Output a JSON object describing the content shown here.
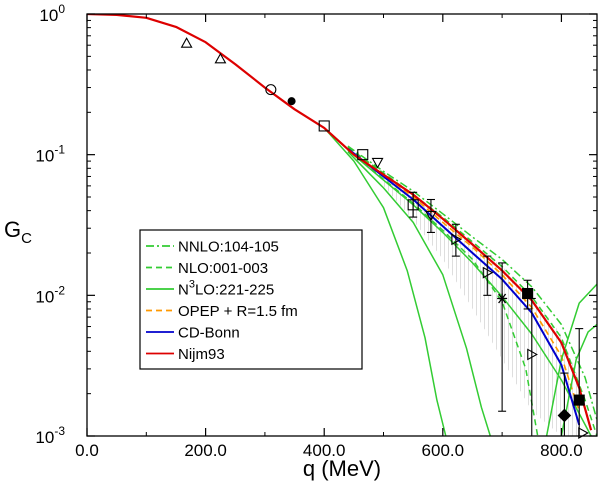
{
  "chart_data": {
    "type": "line",
    "xlabel": "q (MeV)",
    "ylabel_main": "G",
    "ylabel_sub": "C",
    "xlim": [
      0,
      860
    ],
    "ylim": [
      0.001,
      1
    ],
    "yscale": "log",
    "x_ticks": [
      {
        "value": 0,
        "label": "0.0"
      },
      {
        "value": 200,
        "label": "200.0"
      },
      {
        "value": 400,
        "label": "400.0"
      },
      {
        "value": 600,
        "label": "600.0"
      },
      {
        "value": 800,
        "label": "800.0"
      }
    ],
    "y_ticks": [
      {
        "value": 1,
        "base": "10",
        "exp": "0"
      },
      {
        "value": 0.1,
        "base": "10",
        "exp": "-1"
      },
      {
        "value": 0.01,
        "base": "10",
        "exp": "-2"
      },
      {
        "value": 0.001,
        "base": "10",
        "exp": "-3"
      }
    ],
    "legend_position": "lower-left",
    "legend": [
      {
        "text": "NNLO:104-105",
        "color": "#33cc33",
        "dash": "8 3 2 3"
      },
      {
        "text": "NLO:001-003",
        "color": "#33cc33",
        "dash": "6 4"
      },
      {
        "text_pre": "N",
        "text_sup": "3",
        "text_post": "LO:221-225",
        "color": "#33cc33",
        "dash": ""
      },
      {
        "text": "OPEP + R=1.5 fm",
        "color": "#ff9900",
        "dash": "6 4"
      },
      {
        "text": "CD-Bonn",
        "color": "#0000cc",
        "dash": ""
      },
      {
        "text": "Nijm93",
        "color": "#dd0000",
        "dash": ""
      }
    ],
    "series": [
      {
        "name": "Nijm93",
        "color": "#dd0000",
        "width": 2.2,
        "dash": "",
        "x": [
          0,
          50,
          100,
          150,
          200,
          250,
          300,
          350,
          400,
          450,
          500,
          550,
          600,
          650,
          700,
          750,
          800,
          830,
          850
        ],
        "y": [
          1.0,
          0.985,
          0.94,
          0.81,
          0.63,
          0.44,
          0.3,
          0.21,
          0.155,
          0.1,
          0.072,
          0.052,
          0.035,
          0.023,
          0.015,
          0.0092,
          0.0046,
          0.0022,
          0.0011
        ]
      },
      {
        "name": "CD-Bonn",
        "color": "#0000cc",
        "width": 2.0,
        "dash": "",
        "x": [
          440,
          500,
          550,
          600,
          650,
          700,
          750,
          800,
          830
        ],
        "y": [
          0.11,
          0.07,
          0.048,
          0.031,
          0.02,
          0.013,
          0.0075,
          0.0032,
          0.0012
        ]
      },
      {
        "name": "OPEP + R=1.5 fm",
        "color": "#ff9900",
        "width": 1.6,
        "dash": "6 4",
        "x": [
          440,
          500,
          550,
          600,
          650,
          700,
          750,
          800,
          830
        ],
        "y": [
          0.112,
          0.072,
          0.05,
          0.033,
          0.022,
          0.014,
          0.0082,
          0.0037,
          0.0015
        ]
      },
      {
        "name": "NNLO:104-105",
        "color": "#33cc33",
        "width": 1.5,
        "dash": "8 3 2 3",
        "x": [
          440,
          500,
          550,
          600,
          650,
          700,
          750,
          800,
          840,
          860
        ],
        "y": [
          0.115,
          0.076,
          0.055,
          0.038,
          0.026,
          0.018,
          0.0115,
          0.0062,
          0.0026,
          0.0013
        ]
      },
      {
        "name": "NLO:001-003",
        "color": "#33cc33",
        "width": 1.5,
        "dash": "6 4",
        "x": [
          440,
          500,
          550,
          600,
          650,
          700,
          750,
          800,
          840,
          860
        ],
        "y": [
          0.113,
          0.074,
          0.052,
          0.036,
          0.024,
          0.016,
          0.0098,
          0.005,
          0.0018,
          0.001
        ]
      },
      {
        "name": "",
        "color": "#33cc33",
        "width": 1.5,
        "dash": "6 4",
        "x": [
          440,
          500,
          550,
          600,
          650,
          700,
          740,
          760
        ],
        "y": [
          0.108,
          0.067,
          0.045,
          0.029,
          0.018,
          0.009,
          0.003,
          0.001
        ]
      },
      {
        "name": "N3LO:221-225",
        "color": "#33cc33",
        "width": 1.5,
        "dash": "",
        "x": [
          440,
          500,
          550,
          600,
          650,
          700,
          750,
          800,
          850
        ],
        "y": [
          0.108,
          0.066,
          0.044,
          0.028,
          0.017,
          0.0098,
          0.0053,
          0.0025,
          0.001
        ]
      },
      {
        "name": "",
        "color": "#33cc33",
        "width": 1.5,
        "dash": "",
        "x": [
          440,
          500,
          550,
          600,
          640,
          665,
          680
        ],
        "y": [
          0.105,
          0.058,
          0.033,
          0.014,
          0.0042,
          0.0016,
          0.001
        ]
      },
      {
        "name": "",
        "color": "#33cc33",
        "width": 1.5,
        "dash": "",
        "x": [
          400,
          450,
          500,
          540,
          570,
          590,
          605
        ],
        "y": [
          0.155,
          0.09,
          0.042,
          0.015,
          0.005,
          0.0018,
          0.001
        ]
      },
      {
        "name": "",
        "color": "#33cc33",
        "width": 1.5,
        "dash": "",
        "x": [
          775,
          800,
          830,
          860
        ],
        "y": [
          0.001,
          0.0035,
          0.0088,
          0.012
        ]
      },
      {
        "name": "",
        "color": "#33cc33",
        "width": 1.5,
        "dash": "",
        "x": [
          800,
          825,
          845,
          860
        ],
        "y": [
          0.001,
          0.0035,
          0.0055,
          0.0062
        ]
      }
    ],
    "band": {
      "color": "#c8c8c8",
      "x": [
        500,
        550,
        600,
        650,
        700,
        750,
        800,
        830
      ],
      "y_upper": [
        0.07,
        0.052,
        0.036,
        0.024,
        0.016,
        0.01,
        0.0052,
        0.0025
      ],
      "y_lower": [
        0.06,
        0.034,
        0.018,
        0.008,
        0.0035,
        0.0015,
        0.001,
        0.001
      ]
    },
    "data_points": [
      {
        "x": 168,
        "y": 0.62,
        "marker": "triangle-up",
        "fill": "none"
      },
      {
        "x": 225,
        "y": 0.48,
        "marker": "triangle-up",
        "fill": "none"
      },
      {
        "x": 310,
        "y": 0.29,
        "marker": "circle",
        "fill": "none"
      },
      {
        "x": 345,
        "y": 0.24,
        "marker": "circle-small",
        "fill": "black"
      },
      {
        "x": 400,
        "y": 0.16,
        "marker": "square",
        "fill": "none"
      },
      {
        "x": 465,
        "y": 0.1,
        "marker": "square",
        "fill": "none"
      },
      {
        "x": 490,
        "y": 0.088,
        "marker": "triangle-down",
        "fill": "none"
      },
      {
        "x": 550,
        "y": 0.044,
        "marker": "square",
        "fill": "none",
        "err_low": 0.036,
        "err_high": 0.054
      },
      {
        "x": 580,
        "y": 0.037,
        "marker": "triangle-down",
        "fill": "none",
        "err_low": 0.028,
        "err_high": 0.048
      },
      {
        "x": 622,
        "y": 0.025,
        "marker": "triangle-right",
        "fill": "none",
        "err_low": 0.019,
        "err_high": 0.032
      },
      {
        "x": 675,
        "y": 0.0145,
        "marker": "triangle-right",
        "fill": "none",
        "err_low": 0.01,
        "err_high": 0.019
      },
      {
        "x": 700,
        "y": 0.0095,
        "marker": "star",
        "fill": "black",
        "err_low": 0.0015,
        "err_high": 0.017
      },
      {
        "x": 743,
        "y": 0.0103,
        "marker": "square",
        "fill": "black",
        "err_low": 0.008,
        "err_high": 0.0128
      },
      {
        "x": 750,
        "y": 0.0038,
        "marker": "triangle-right",
        "fill": "none",
        "err_low": 0.001,
        "err_high": 0.0095
      },
      {
        "x": 805,
        "y": 0.0014,
        "marker": "diamond",
        "fill": "black",
        "err_low": 0.001,
        "err_high": 0.0028
      },
      {
        "x": 830,
        "y": 0.0018,
        "marker": "square",
        "fill": "black",
        "err_low": 0.001,
        "err_high": 0.0058
      },
      {
        "x": 836,
        "y": 0.00105,
        "marker": "triangle-right",
        "fill": "none"
      }
    ]
  }
}
